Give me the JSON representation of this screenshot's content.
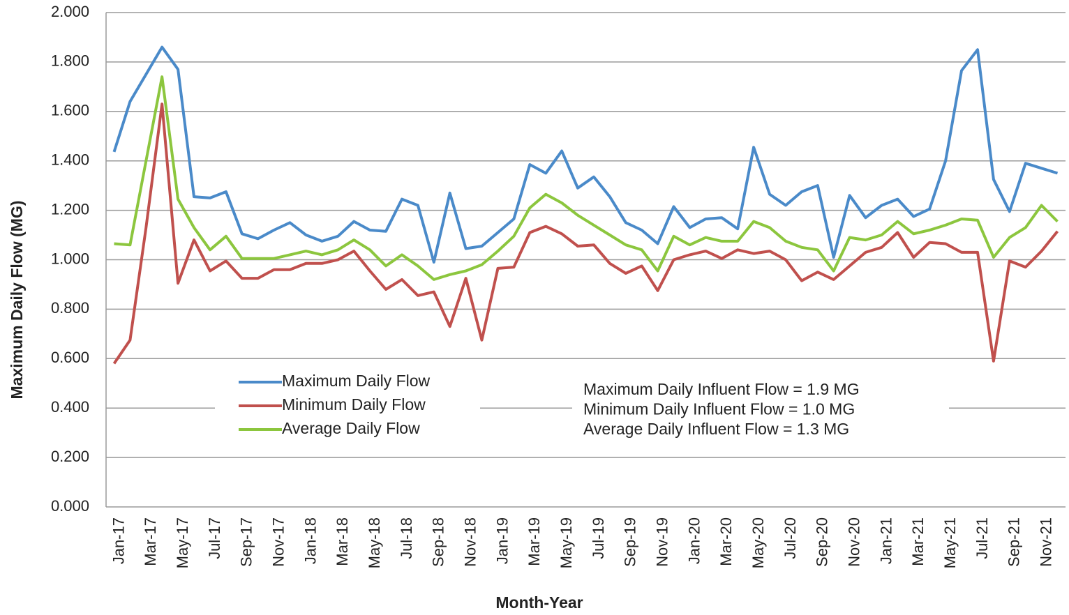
{
  "chart_data": {
    "type": "line",
    "xlabel": "Month-Year",
    "ylabel": "Maximum Daily Flow (MG)",
    "categories": [
      "Jan-17",
      null,
      "Mar-17",
      null,
      "May-17",
      null,
      "Jul-17",
      null,
      "Sep-17",
      null,
      "Nov-17",
      null,
      "Jan-18",
      null,
      "Mar-18",
      null,
      "May-18",
      null,
      "Jul-18",
      null,
      "Sep-18",
      null,
      "Nov-18",
      null,
      "Jan-19",
      null,
      "Mar-19",
      null,
      "May-19",
      null,
      "Jul-19",
      null,
      "Sep-19",
      null,
      "Nov-19",
      null,
      "Jan-20",
      null,
      "Mar-20",
      null,
      "May-20",
      null,
      "Jul-20",
      null,
      "Sep-20",
      null,
      "Nov-20",
      null,
      "Jan-21",
      null,
      "Mar-21",
      null,
      "May-21",
      null,
      "Jul-21",
      null,
      "Sep-21",
      null,
      "Nov-21",
      null
    ],
    "series": [
      {
        "name": "Maximum Daily Flow",
        "color": "#4a8ac9",
        "values": [
          1.436,
          1.64,
          1.75,
          1.86,
          1.77,
          1.255,
          1.25,
          1.275,
          1.105,
          1.085,
          1.12,
          1.15,
          1.1,
          1.075,
          1.095,
          1.155,
          1.12,
          1.115,
          1.245,
          1.22,
          0.99,
          1.27,
          1.045,
          1.055,
          1.11,
          1.165,
          1.385,
          1.35,
          1.44,
          1.29,
          1.335,
          1.255,
          1.15,
          1.12,
          1.065,
          1.215,
          1.13,
          1.165,
          1.17,
          1.125,
          1.455,
          1.265,
          1.22,
          1.275,
          1.3,
          1.01,
          1.26,
          1.17,
          1.22,
          1.245,
          1.175,
          1.205,
          1.4,
          1.765,
          1.85,
          1.325,
          1.195,
          1.39,
          1.37,
          1.35
        ]
      },
      {
        "name": "Minimum Daily Flow",
        "color": "#c0504d",
        "values": [
          0.58,
          0.675,
          1.13,
          1.63,
          0.905,
          1.08,
          0.955,
          0.995,
          0.925,
          0.925,
          0.96,
          0.96,
          0.985,
          0.985,
          1.0,
          1.035,
          0.955,
          0.88,
          0.92,
          0.855,
          0.87,
          0.73,
          0.925,
          0.675,
          0.965,
          0.97,
          1.11,
          1.135,
          1.105,
          1.055,
          1.06,
          0.985,
          0.945,
          0.975,
          0.875,
          1.0,
          1.02,
          1.035,
          1.005,
          1.04,
          1.025,
          1.035,
          1.0,
          0.915,
          0.95,
          0.92,
          0.975,
          1.03,
          1.05,
          1.11,
          1.01,
          1.07,
          1.065,
          1.03,
          1.03,
          0.59,
          0.995,
          0.97,
          1.035,
          1.115
        ]
      },
      {
        "name": "Average Daily Flow",
        "color": "#8cc63e",
        "values": [
          1.065,
          1.06,
          1.4,
          1.74,
          1.245,
          1.13,
          1.04,
          1.095,
          1.005,
          1.005,
          1.005,
          1.02,
          1.035,
          1.02,
          1.04,
          1.08,
          1.04,
          0.975,
          1.02,
          0.975,
          0.92,
          0.94,
          0.955,
          0.98,
          1.035,
          1.095,
          1.21,
          1.265,
          1.23,
          1.18,
          1.14,
          1.1,
          1.06,
          1.04,
          0.955,
          1.095,
          1.06,
          1.09,
          1.075,
          1.075,
          1.155,
          1.13,
          1.075,
          1.05,
          1.04,
          0.955,
          1.09,
          1.08,
          1.1,
          1.155,
          1.105,
          1.12,
          1.14,
          1.165,
          1.16,
          1.01,
          1.09,
          1.13,
          1.22,
          1.155
        ]
      }
    ],
    "ylim": [
      0,
      2
    ],
    "yticks": [
      {
        "value": 0,
        "label": "0.000"
      },
      {
        "value": 0.2,
        "label": "0.200"
      },
      {
        "value": 0.4,
        "label": "0.400"
      },
      {
        "value": 0.6,
        "label": "0.600"
      },
      {
        "value": 0.8,
        "label": "0.800"
      },
      {
        "value": 1,
        "label": "1.000"
      },
      {
        "value": 1.2,
        "label": "1.200"
      },
      {
        "value": 1.4,
        "label": "1.400"
      },
      {
        "value": 1.6,
        "label": "1.600"
      },
      {
        "value": 1.8,
        "label": "1.800"
      },
      {
        "value": 2,
        "label": "2.000"
      }
    ],
    "grid": true,
    "legend": "lower left",
    "annotations": [
      "Maximum Daily Influent Flow = 1.9 MG",
      "Minimum Daily Influent Flow =  1.0 MG",
      "Average Daily Influent Flow =  1.3 MG"
    ]
  }
}
